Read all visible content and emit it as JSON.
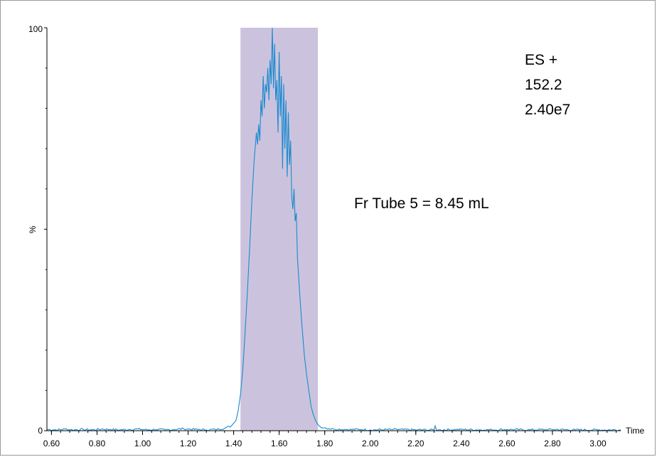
{
  "chart_data": {
    "type": "line",
    "title": "",
    "xlabel": "Time",
    "ylabel": "%",
    "xlim": [
      0.58,
      3.1
    ],
    "ylim": [
      0,
      100
    ],
    "x_ticks": [
      "0.60",
      "0.80",
      "1.00",
      "1.20",
      "1.40",
      "1.60",
      "1.80",
      "2.00",
      "2.20",
      "2.40",
      "2.60",
      "2.80",
      "3.00"
    ],
    "x_tick_values": [
      0.6,
      0.8,
      1.0,
      1.2,
      1.4,
      1.6,
      1.8,
      2.0,
      2.2,
      2.4,
      2.6,
      2.8,
      3.0
    ],
    "y_ticks": [
      "0",
      "%",
      "100"
    ],
    "y_tick_values": [
      0,
      50,
      100
    ],
    "highlight_region": {
      "x_start": 1.43,
      "x_end": 1.77,
      "color": "#cbc3dd"
    },
    "line_color": "#1a8ad0",
    "annotations": {
      "mode": "ES +",
      "mass": "152.2",
      "intensity": "2.40e7",
      "fraction": "Fr Tube 5 = 8.45 mL"
    },
    "series": [
      {
        "x": [
          0.58,
          0.62,
          0.66,
          0.7,
          0.74,
          0.78,
          0.82,
          0.86,
          0.9,
          0.94,
          0.98,
          1.02,
          1.06,
          1.1,
          1.14,
          1.18,
          1.2,
          1.24,
          1.28,
          1.32,
          1.36,
          1.39,
          1.41,
          1.42,
          1.43,
          1.44,
          1.45,
          1.46,
          1.47,
          1.48,
          1.49,
          1.5,
          1.505,
          1.51,
          1.515,
          1.52,
          1.525,
          1.53,
          1.535,
          1.54,
          1.545,
          1.55,
          1.555,
          1.56,
          1.565,
          1.57,
          1.575,
          1.58,
          1.585,
          1.59,
          1.595,
          1.6,
          1.605,
          1.61,
          1.615,
          1.62,
          1.625,
          1.63,
          1.635,
          1.64,
          1.645,
          1.65,
          1.655,
          1.66,
          1.665,
          1.67,
          1.675,
          1.68,
          1.69,
          1.7,
          1.71,
          1.72,
          1.73,
          1.74,
          1.75,
          1.76,
          1.77,
          1.78,
          1.8,
          1.84,
          1.9,
          1.96,
          2.0,
          2.1,
          2.2,
          2.28,
          2.285,
          2.29,
          2.3,
          2.4,
          2.5,
          2.6,
          2.7,
          2.8,
          2.9,
          3.0,
          3.1
        ],
        "y": [
          0.3,
          0.2,
          0.4,
          0.2,
          0.3,
          0.2,
          0.4,
          0.3,
          0.2,
          0.3,
          0.4,
          0.2,
          0.3,
          0.2,
          0.3,
          0.5,
          0.4,
          0.3,
          0.2,
          0.3,
          0.6,
          1.2,
          2.5,
          5.0,
          9.0,
          15.0,
          24.0,
          34.0,
          45.0,
          57.0,
          67.0,
          74.0,
          71.0,
          76.0,
          72.0,
          82.0,
          78.0,
          88.0,
          80.0,
          86.0,
          84.0,
          90.0,
          82.0,
          92.0,
          86.0,
          100.0,
          85.0,
          96.0,
          82.0,
          87.0,
          74.0,
          94.0,
          78.0,
          88.0,
          65.0,
          86.0,
          70.0,
          82.0,
          63.0,
          79.0,
          66.0,
          72.0,
          58.0,
          55.0,
          60.0,
          52.0,
          54.0,
          43.0,
          34.0,
          26.0,
          19.0,
          14.0,
          10.0,
          6.0,
          4.0,
          2.5,
          1.5,
          1.0,
          0.7,
          0.4,
          0.3,
          0.3,
          0.2,
          0.3,
          0.2,
          0.2,
          1.2,
          0.3,
          0.2,
          0.3,
          0.2,
          0.3,
          0.2,
          0.3,
          0.2,
          0.2,
          0.2
        ]
      }
    ]
  }
}
